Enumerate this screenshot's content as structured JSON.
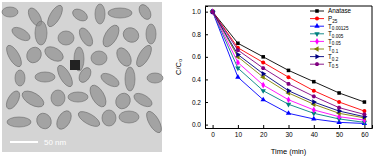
{
  "micrograph": {
    "scale_bar_label": "50 nm"
  },
  "chart_data": {
    "type": "line",
    "x_label": "Time (min)",
    "y_label": "C/C₀",
    "x": [
      0,
      10,
      20,
      30,
      40,
      50,
      60
    ],
    "xlim": [
      -3,
      63
    ],
    "xticks": [
      0,
      10,
      20,
      30,
      40,
      50,
      60
    ],
    "ylim": [
      -0.03,
      1.05
    ],
    "yticks": [
      {
        "value": 0,
        "label": "0.0"
      },
      0.2,
      0.4,
      0.6,
      0.8,
      {
        "value": 1,
        "label": "1.0"
      }
    ],
    "grid": false,
    "legend": "upper right",
    "series": [
      {
        "name": "Anatase",
        "color": "#000000",
        "marker": "square",
        "values": [
          1,
          0.72,
          0.6,
          0.48,
          0.38,
          0.28,
          0.2
        ]
      },
      {
        "name": "P25",
        "color": "#ff0000",
        "marker": "circle",
        "values": [
          1,
          0.68,
          0.55,
          0.42,
          0.3,
          0.2,
          0.12
        ]
      },
      {
        "name": "T0.00125",
        "color": "#0000ff",
        "marker": "triangle-up",
        "values": [
          1,
          0.42,
          0.22,
          0.1,
          0.05,
          0.02,
          0.01
        ]
      },
      {
        "name": "T0.005",
        "color": "#008080",
        "marker": "triangle-down",
        "values": [
          1,
          0.5,
          0.3,
          0.18,
          0.1,
          0.05,
          0.02
        ]
      },
      {
        "name": "T0.05",
        "color": "#ff00ff",
        "marker": "diamond",
        "values": [
          1,
          0.55,
          0.35,
          0.22,
          0.13,
          0.07,
          0.04
        ]
      },
      {
        "name": "T0.1",
        "color": "#808000",
        "marker": "triangle-left",
        "values": [
          1,
          0.6,
          0.42,
          0.28,
          0.18,
          0.1,
          0.06
        ]
      },
      {
        "name": "T0.2",
        "color": "#000080",
        "marker": "triangle-right",
        "values": [
          1,
          0.62,
          0.45,
          0.3,
          0.2,
          0.12,
          0.07
        ]
      },
      {
        "name": "T0.5",
        "color": "#800080",
        "marker": "hexagon",
        "values": [
          1,
          0.66,
          0.5,
          0.36,
          0.25,
          0.15,
          0.09
        ]
      }
    ]
  }
}
